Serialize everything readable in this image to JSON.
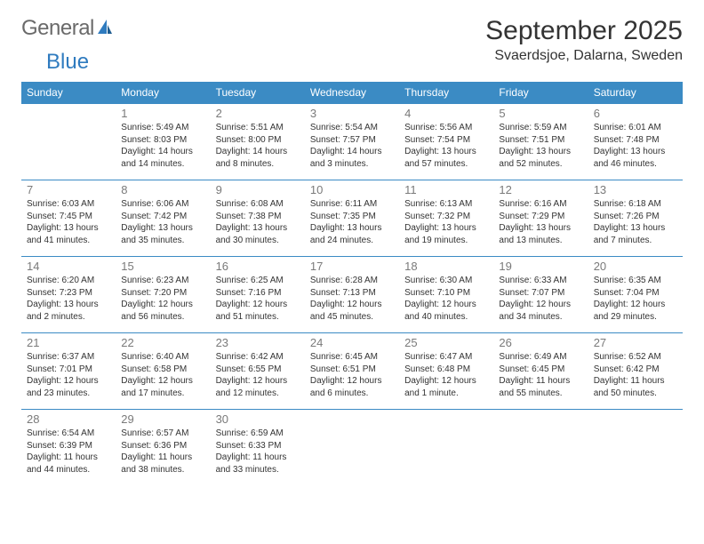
{
  "logo": {
    "part1": "General",
    "part2": "Blue"
  },
  "title": "September 2025",
  "location": "Svaerdsjoe, Dalarna, Sweden",
  "colors": {
    "header_bg": "#3b8bc4",
    "header_text": "#ffffff",
    "divider": "#3b8bc4",
    "daynum": "#7a7a7a",
    "body_text": "#333333",
    "logo_gray": "#6a6a6a",
    "logo_blue": "#2f7bbf",
    "page_bg": "#ffffff"
  },
  "day_headers": [
    "Sunday",
    "Monday",
    "Tuesday",
    "Wednesday",
    "Thursday",
    "Friday",
    "Saturday"
  ],
  "weeks": [
    [
      null,
      {
        "n": "1",
        "sr": "Sunrise: 5:49 AM",
        "ss": "Sunset: 8:03 PM",
        "dl": "Daylight: 14 hours and 14 minutes."
      },
      {
        "n": "2",
        "sr": "Sunrise: 5:51 AM",
        "ss": "Sunset: 8:00 PM",
        "dl": "Daylight: 14 hours and 8 minutes."
      },
      {
        "n": "3",
        "sr": "Sunrise: 5:54 AM",
        "ss": "Sunset: 7:57 PM",
        "dl": "Daylight: 14 hours and 3 minutes."
      },
      {
        "n": "4",
        "sr": "Sunrise: 5:56 AM",
        "ss": "Sunset: 7:54 PM",
        "dl": "Daylight: 13 hours and 57 minutes."
      },
      {
        "n": "5",
        "sr": "Sunrise: 5:59 AM",
        "ss": "Sunset: 7:51 PM",
        "dl": "Daylight: 13 hours and 52 minutes."
      },
      {
        "n": "6",
        "sr": "Sunrise: 6:01 AM",
        "ss": "Sunset: 7:48 PM",
        "dl": "Daylight: 13 hours and 46 minutes."
      }
    ],
    [
      {
        "n": "7",
        "sr": "Sunrise: 6:03 AM",
        "ss": "Sunset: 7:45 PM",
        "dl": "Daylight: 13 hours and 41 minutes."
      },
      {
        "n": "8",
        "sr": "Sunrise: 6:06 AM",
        "ss": "Sunset: 7:42 PM",
        "dl": "Daylight: 13 hours and 35 minutes."
      },
      {
        "n": "9",
        "sr": "Sunrise: 6:08 AM",
        "ss": "Sunset: 7:38 PM",
        "dl": "Daylight: 13 hours and 30 minutes."
      },
      {
        "n": "10",
        "sr": "Sunrise: 6:11 AM",
        "ss": "Sunset: 7:35 PM",
        "dl": "Daylight: 13 hours and 24 minutes."
      },
      {
        "n": "11",
        "sr": "Sunrise: 6:13 AM",
        "ss": "Sunset: 7:32 PM",
        "dl": "Daylight: 13 hours and 19 minutes."
      },
      {
        "n": "12",
        "sr": "Sunrise: 6:16 AM",
        "ss": "Sunset: 7:29 PM",
        "dl": "Daylight: 13 hours and 13 minutes."
      },
      {
        "n": "13",
        "sr": "Sunrise: 6:18 AM",
        "ss": "Sunset: 7:26 PM",
        "dl": "Daylight: 13 hours and 7 minutes."
      }
    ],
    [
      {
        "n": "14",
        "sr": "Sunrise: 6:20 AM",
        "ss": "Sunset: 7:23 PM",
        "dl": "Daylight: 13 hours and 2 minutes."
      },
      {
        "n": "15",
        "sr": "Sunrise: 6:23 AM",
        "ss": "Sunset: 7:20 PM",
        "dl": "Daylight: 12 hours and 56 minutes."
      },
      {
        "n": "16",
        "sr": "Sunrise: 6:25 AM",
        "ss": "Sunset: 7:16 PM",
        "dl": "Daylight: 12 hours and 51 minutes."
      },
      {
        "n": "17",
        "sr": "Sunrise: 6:28 AM",
        "ss": "Sunset: 7:13 PM",
        "dl": "Daylight: 12 hours and 45 minutes."
      },
      {
        "n": "18",
        "sr": "Sunrise: 6:30 AM",
        "ss": "Sunset: 7:10 PM",
        "dl": "Daylight: 12 hours and 40 minutes."
      },
      {
        "n": "19",
        "sr": "Sunrise: 6:33 AM",
        "ss": "Sunset: 7:07 PM",
        "dl": "Daylight: 12 hours and 34 minutes."
      },
      {
        "n": "20",
        "sr": "Sunrise: 6:35 AM",
        "ss": "Sunset: 7:04 PM",
        "dl": "Daylight: 12 hours and 29 minutes."
      }
    ],
    [
      {
        "n": "21",
        "sr": "Sunrise: 6:37 AM",
        "ss": "Sunset: 7:01 PM",
        "dl": "Daylight: 12 hours and 23 minutes."
      },
      {
        "n": "22",
        "sr": "Sunrise: 6:40 AM",
        "ss": "Sunset: 6:58 PM",
        "dl": "Daylight: 12 hours and 17 minutes."
      },
      {
        "n": "23",
        "sr": "Sunrise: 6:42 AM",
        "ss": "Sunset: 6:55 PM",
        "dl": "Daylight: 12 hours and 12 minutes."
      },
      {
        "n": "24",
        "sr": "Sunrise: 6:45 AM",
        "ss": "Sunset: 6:51 PM",
        "dl": "Daylight: 12 hours and 6 minutes."
      },
      {
        "n": "25",
        "sr": "Sunrise: 6:47 AM",
        "ss": "Sunset: 6:48 PM",
        "dl": "Daylight: 12 hours and 1 minute."
      },
      {
        "n": "26",
        "sr": "Sunrise: 6:49 AM",
        "ss": "Sunset: 6:45 PM",
        "dl": "Daylight: 11 hours and 55 minutes."
      },
      {
        "n": "27",
        "sr": "Sunrise: 6:52 AM",
        "ss": "Sunset: 6:42 PM",
        "dl": "Daylight: 11 hours and 50 minutes."
      }
    ],
    [
      {
        "n": "28",
        "sr": "Sunrise: 6:54 AM",
        "ss": "Sunset: 6:39 PM",
        "dl": "Daylight: 11 hours and 44 minutes."
      },
      {
        "n": "29",
        "sr": "Sunrise: 6:57 AM",
        "ss": "Sunset: 6:36 PM",
        "dl": "Daylight: 11 hours and 38 minutes."
      },
      {
        "n": "30",
        "sr": "Sunrise: 6:59 AM",
        "ss": "Sunset: 6:33 PM",
        "dl": "Daylight: 11 hours and 33 minutes."
      },
      null,
      null,
      null,
      null
    ]
  ]
}
